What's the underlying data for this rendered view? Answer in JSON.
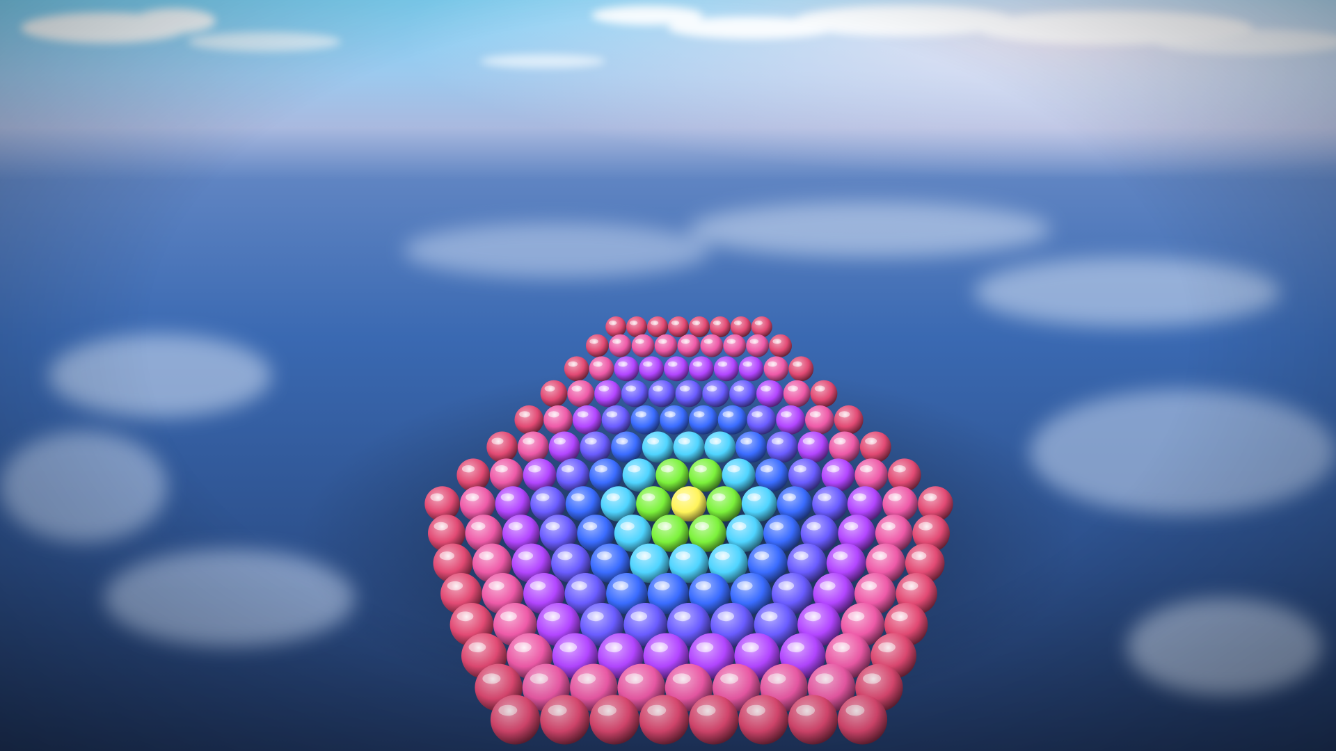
{
  "scene": {
    "description_free": true,
    "sky_colors": {
      "top": "#6fc3f0",
      "horizon": "#c9d6ee",
      "haze": "#9fb3d8"
    },
    "water_colors": {
      "near": "#24426f",
      "mid": "#3563a8",
      "far": "#5f86c2",
      "reflection_cloud": "#d6e2f4"
    },
    "sphere_grid": {
      "shape": "hexagon",
      "color_bands": [
        "#fff45a",
        "#7cf23c",
        "#34e2d6",
        "#4fd4ff",
        "#3a6cff",
        "#6a5cff",
        "#b246ff",
        "#e04fd8",
        "#ee5aa8",
        "#e24a74"
      ]
    }
  }
}
